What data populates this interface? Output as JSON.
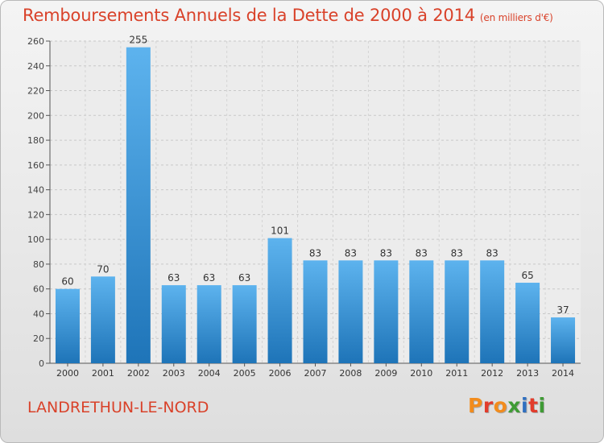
{
  "title": "Remboursements Annuels de la Dette de 2000 à 2014",
  "subtitle": "(en milliers d'€)",
  "town": "LANDRETHUN-LE-NORD",
  "brand": "Proxiti",
  "colors": {
    "title": "#d9422a",
    "bar_light": "#5db3ee",
    "bar_dark": "#1e74b8",
    "brand_letters": [
      "#f28c1d",
      "#e23c2c",
      "#f28c1d",
      "#3f9b35",
      "#2f6fc0",
      "#e23c2c",
      "#3f9b35"
    ]
  },
  "chart_data": {
    "type": "bar",
    "title": "Remboursements Annuels de la Dette de 2000 à 2014",
    "categories": [
      "2000",
      "2001",
      "2002",
      "2003",
      "2004",
      "2005",
      "2006",
      "2007",
      "2008",
      "2009",
      "2010",
      "2011",
      "2012",
      "2013",
      "2014"
    ],
    "values": [
      60,
      70,
      255,
      63,
      63,
      63,
      101,
      83,
      83,
      83,
      83,
      83,
      83,
      65,
      37
    ],
    "ylim": [
      0,
      260
    ],
    "yticks": [
      0,
      20,
      40,
      60,
      80,
      100,
      120,
      140,
      160,
      180,
      200,
      220,
      240,
      260
    ],
    "grid": true,
    "data_labels": true
  }
}
